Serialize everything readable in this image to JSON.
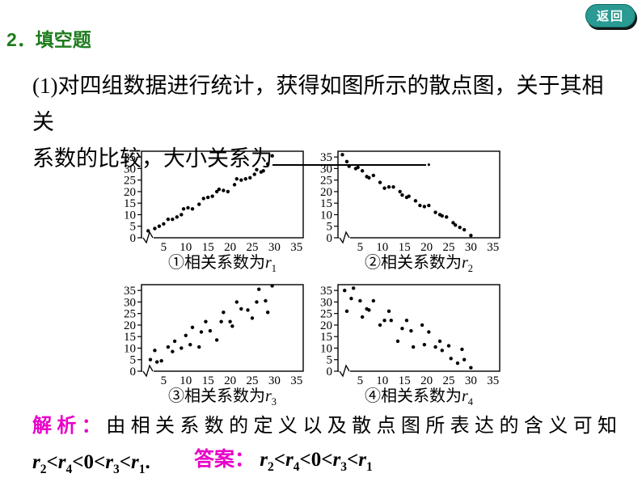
{
  "colors": {
    "green": "#1c7c1c",
    "magenta": "#e800c8",
    "teal": "#2a9a92",
    "ink": "#000000",
    "paper": "#ffffff"
  },
  "back_button": {
    "label": "返回"
  },
  "heading": {
    "label": "2．填空题"
  },
  "problem": {
    "line1": "(1)对四组数据进行统计，获得如图所示的散点图，关于其相关",
    "line2_prefix": "系数的比较，大小关系为",
    "line2_suffix": "."
  },
  "analysis": {
    "label": "解析：",
    "text": "由相关系数的定义以及散点图所表达的含义可知",
    "formula": "r_2<r_4<0<r_3<r_1."
  },
  "answer": {
    "label": "答案：",
    "formula": "r_2<r_4<0<r_3<r_1"
  },
  "chart_data": [
    {
      "type": "scatter",
      "caption": "①相关系数为r_1",
      "xlim": [
        0,
        36.5
      ],
      "ylim": [
        0,
        37.5
      ],
      "xticks": [
        5,
        10,
        15,
        20,
        25,
        30,
        35
      ],
      "yticks": [
        0,
        5,
        10,
        15,
        20,
        25,
        30,
        35
      ],
      "axis_break": true,
      "grid": false,
      "trend": "strong positive correlation",
      "points": [
        [
          1.5,
          3
        ],
        [
          3,
          4
        ],
        [
          4,
          5
        ],
        [
          5,
          6
        ],
        [
          6,
          8
        ],
        [
          7,
          8
        ],
        [
          8,
          9
        ],
        [
          9,
          10
        ],
        [
          9.5,
          12.5
        ],
        [
          10.5,
          13
        ],
        [
          11.5,
          12.5
        ],
        [
          13,
          14.5
        ],
        [
          14,
          17
        ],
        [
          15,
          17.5
        ],
        [
          16,
          18
        ],
        [
          17,
          20
        ],
        [
          17.5,
          21
        ],
        [
          18.5,
          20.5
        ],
        [
          19.5,
          20
        ],
        [
          21,
          23
        ],
        [
          21.5,
          25.5
        ],
        [
          22.5,
          25
        ],
        [
          23.5,
          25.5
        ],
        [
          24.5,
          26
        ],
        [
          25.5,
          27.5
        ],
        [
          26,
          29.5
        ],
        [
          27,
          28.5
        ],
        [
          27.5,
          29
        ],
        [
          28.5,
          32
        ],
        [
          29.5,
          35.5
        ]
      ]
    },
    {
      "type": "scatter",
      "caption": "②相关系数为r_2",
      "xlim": [
        0,
        36.5
      ],
      "ylim": [
        0,
        37.5
      ],
      "xticks": [
        5,
        10,
        15,
        20,
        25,
        30,
        35
      ],
      "yticks": [
        0,
        5,
        10,
        15,
        20,
        25,
        30,
        35
      ],
      "axis_break": true,
      "grid": false,
      "trend": "strong negative correlation",
      "points": [
        [
          1,
          36
        ],
        [
          2,
          33
        ],
        [
          2.5,
          31
        ],
        [
          4,
          30
        ],
        [
          4.5,
          30.5
        ],
        [
          5.5,
          29
        ],
        [
          6.5,
          26.5
        ],
        [
          7,
          26
        ],
        [
          8,
          27
        ],
        [
          9.5,
          24
        ],
        [
          10.5,
          21.5
        ],
        [
          11.5,
          22
        ],
        [
          12.5,
          22
        ],
        [
          14,
          20
        ],
        [
          14.5,
          18.5
        ],
        [
          15.5,
          17.5
        ],
        [
          16,
          18
        ],
        [
          17.5,
          16
        ],
        [
          18.5,
          14
        ],
        [
          19.5,
          13.5
        ],
        [
          20.5,
          14
        ],
        [
          22,
          11
        ],
        [
          23,
          10
        ],
        [
          23.5,
          9.5
        ],
        [
          24.5,
          9
        ],
        [
          26,
          6.5
        ],
        [
          26.5,
          5.5
        ],
        [
          27.5,
          4.5
        ],
        [
          28.5,
          3.5
        ],
        [
          30,
          1
        ]
      ]
    },
    {
      "type": "scatter",
      "caption": "③相关系数为r_3",
      "xlim": [
        0,
        36.5
      ],
      "ylim": [
        0,
        37.5
      ],
      "xticks": [
        5,
        10,
        15,
        20,
        25,
        30,
        35
      ],
      "yticks": [
        0,
        5,
        10,
        15,
        20,
        25,
        30,
        35
      ],
      "axis_break": true,
      "grid": false,
      "trend": "weak positive correlation",
      "points": [
        [
          2,
          5
        ],
        [
          3,
          9
        ],
        [
          3.5,
          4
        ],
        [
          4.5,
          4.5
        ],
        [
          6,
          10.5
        ],
        [
          7,
          8.5
        ],
        [
          7.5,
          13
        ],
        [
          9,
          10
        ],
        [
          10,
          15.5
        ],
        [
          11,
          11.5
        ],
        [
          11.5,
          19
        ],
        [
          13,
          10.5
        ],
        [
          13.5,
          17
        ],
        [
          14.5,
          21.5
        ],
        [
          15.5,
          17.5
        ],
        [
          17,
          13.5
        ],
        [
          18,
          21.5
        ],
        [
          18.5,
          25.5
        ],
        [
          20,
          21.5
        ],
        [
          20.5,
          19.5
        ],
        [
          21.5,
          30
        ],
        [
          22.5,
          27
        ],
        [
          24,
          26.5
        ],
        [
          25,
          23
        ],
        [
          26,
          30
        ],
        [
          26.5,
          35.5
        ],
        [
          28,
          30.5
        ],
        [
          28.5,
          25.5
        ],
        [
          29.5,
          37
        ]
      ]
    },
    {
      "type": "scatter",
      "caption": "④相关系数为r_4",
      "xlim": [
        0,
        36.5
      ],
      "ylim": [
        0,
        37.5
      ],
      "xticks": [
        5,
        10,
        15,
        20,
        25,
        30,
        35
      ],
      "yticks": [
        0,
        5,
        10,
        15,
        20,
        25,
        30,
        35
      ],
      "axis_break": true,
      "grid": false,
      "trend": "weak negative correlation",
      "points": [
        [
          1.5,
          35
        ],
        [
          2,
          26
        ],
        [
          3,
          31.5
        ],
        [
          3.5,
          36
        ],
        [
          5,
          30.5
        ],
        [
          5.5,
          23.5
        ],
        [
          6.5,
          27
        ],
        [
          7,
          26.5
        ],
        [
          8,
          30.5
        ],
        [
          9.5,
          20
        ],
        [
          10.5,
          22
        ],
        [
          11.5,
          26
        ],
        [
          12,
          22
        ],
        [
          13.5,
          13
        ],
        [
          14.5,
          18.5
        ],
        [
          15.5,
          22
        ],
        [
          16.5,
          17.5
        ],
        [
          17,
          10.5
        ],
        [
          19,
          20
        ],
        [
          19.5,
          11.5
        ],
        [
          20.5,
          17
        ],
        [
          22,
          10.5
        ],
        [
          23,
          13
        ],
        [
          23.5,
          9
        ],
        [
          25,
          11
        ],
        [
          25.5,
          5.5
        ],
        [
          27,
          3.5
        ],
        [
          28,
          9.5
        ],
        [
          28.5,
          5
        ],
        [
          30,
          1.5
        ]
      ]
    }
  ]
}
